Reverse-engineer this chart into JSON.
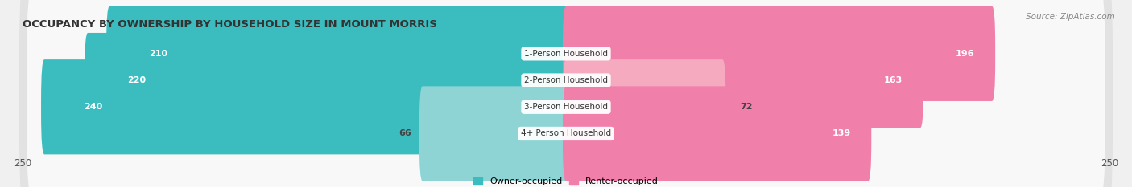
{
  "title": "OCCUPANCY BY OWNERSHIP BY HOUSEHOLD SIZE IN MOUNT MORRIS",
  "source": "Source: ZipAtlas.com",
  "categories": [
    "1-Person Household",
    "2-Person Household",
    "3-Person Household",
    "4+ Person Household"
  ],
  "owner_values": [
    210,
    220,
    240,
    66
  ],
  "renter_values": [
    196,
    163,
    72,
    139
  ],
  "x_max": 250,
  "owner_color": "#3BBCBE",
  "owner_color_light": "#8ED4D5",
  "renter_color": "#F07FAA",
  "renter_color_light": "#F5AABF",
  "bg_color": "#f0f0f0",
  "bar_bg_color": "#e2e2e2",
  "bar_bg_inner": "#f8f8f8",
  "title_fontsize": 9.5,
  "label_fontsize": 8,
  "tick_fontsize": 8.5,
  "legend_fontsize": 8,
  "source_fontsize": 7.5
}
